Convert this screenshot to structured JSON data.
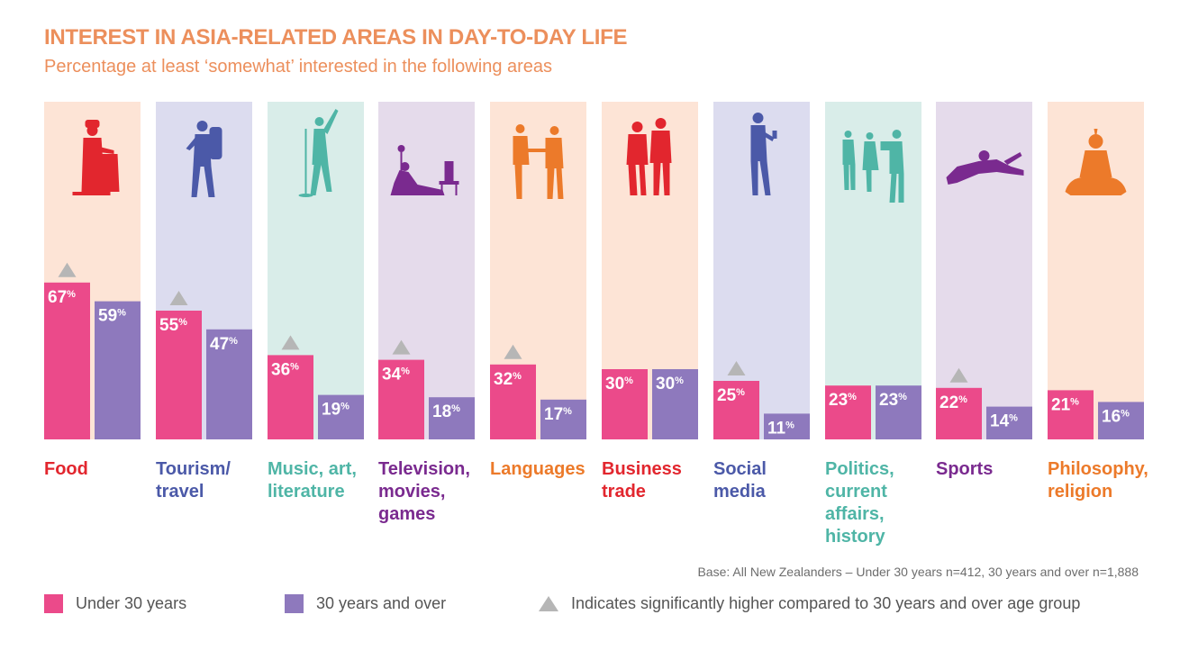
{
  "chart_data": {
    "type": "bar",
    "title": "INTEREST IN ASIA-RELATED AREAS IN DAY-TO-DAY LIFE",
    "subtitle": "Percentage at least ‘somewhat’ interested in the following areas",
    "ylim": [
      0,
      100
    ],
    "value_suffix": "%",
    "series": [
      {
        "name": "Under 30 years",
        "color": "#eb4a8a",
        "values": [
          67,
          55,
          36,
          34,
          32,
          30,
          25,
          23,
          22,
          21
        ]
      },
      {
        "name": "30 years and over",
        "color": "#8e79bd",
        "values": [
          59,
          47,
          19,
          18,
          17,
          30,
          11,
          23,
          14,
          16
        ]
      }
    ],
    "significant": [
      true,
      true,
      true,
      true,
      true,
      false,
      true,
      false,
      true,
      false
    ],
    "categories": [
      {
        "lines": [
          "Food"
        ],
        "label_color": "#e2262e",
        "bg": "#fde4d6",
        "icon": "chef-icon",
        "icon_color": "#e2262e"
      },
      {
        "lines": [
          "Tourism/",
          "travel"
        ],
        "label_color": "#4b59a8",
        "bg": "#dcdcef",
        "icon": "backpacker-icon",
        "icon_color": "#4b59a8"
      },
      {
        "lines": [
          "Music, art,",
          "literature"
        ],
        "label_color": "#4fb5a6",
        "bg": "#d9ede9",
        "icon": "singer-icon",
        "icon_color": "#4fb5a6"
      },
      {
        "lines": [
          "Television,",
          "movies,",
          "games"
        ],
        "label_color": "#7a2a8f",
        "bg": "#e5dbeb",
        "icon": "tv-viewer-icon",
        "icon_color": "#7a2a8f"
      },
      {
        "lines": [
          "Languages"
        ],
        "label_color": "#ec7a2a",
        "bg": "#fde4d6",
        "icon": "handshake-icon",
        "icon_color": "#ec7a2a"
      },
      {
        "lines": [
          "Business",
          "trade"
        ],
        "label_color": "#e2262e",
        "bg": "#fde4d6",
        "icon": "business-people-icon",
        "icon_color": "#e2262e"
      },
      {
        "lines": [
          "Social",
          "media"
        ],
        "label_color": "#4b59a8",
        "bg": "#dcdcef",
        "icon": "phone-user-icon",
        "icon_color": "#4b59a8"
      },
      {
        "lines": [
          "Politics,",
          "current",
          "affairs,",
          "history"
        ],
        "label_color": "#4fb5a6",
        "bg": "#d9ede9",
        "icon": "reporter-icon",
        "icon_color": "#4fb5a6"
      },
      {
        "lines": [
          "Sports"
        ],
        "label_color": "#7a2a8f",
        "bg": "#e5dbeb",
        "icon": "diving-athlete-icon",
        "icon_color": "#7a2a8f"
      },
      {
        "lines": [
          "Philosophy,",
          "religion"
        ],
        "label_color": "#ec7a2a",
        "bg": "#fde4d6",
        "icon": "buddha-icon",
        "icon_color": "#ec7a2a"
      }
    ],
    "legend_placement": "bottom-left",
    "grid": false
  },
  "title_color": "#ec8f5c",
  "subtitle_color": "#ec8f5c",
  "triangle_color": "#b6b6b6",
  "base_note": "Base: All New Zealanders – Under 30 years n=412, 30 years and over n=1,888",
  "legend": {
    "under30": "Under 30 years",
    "over30": "30 years and over",
    "significance": "Indicates significantly higher compared to 30 years and over age group"
  }
}
